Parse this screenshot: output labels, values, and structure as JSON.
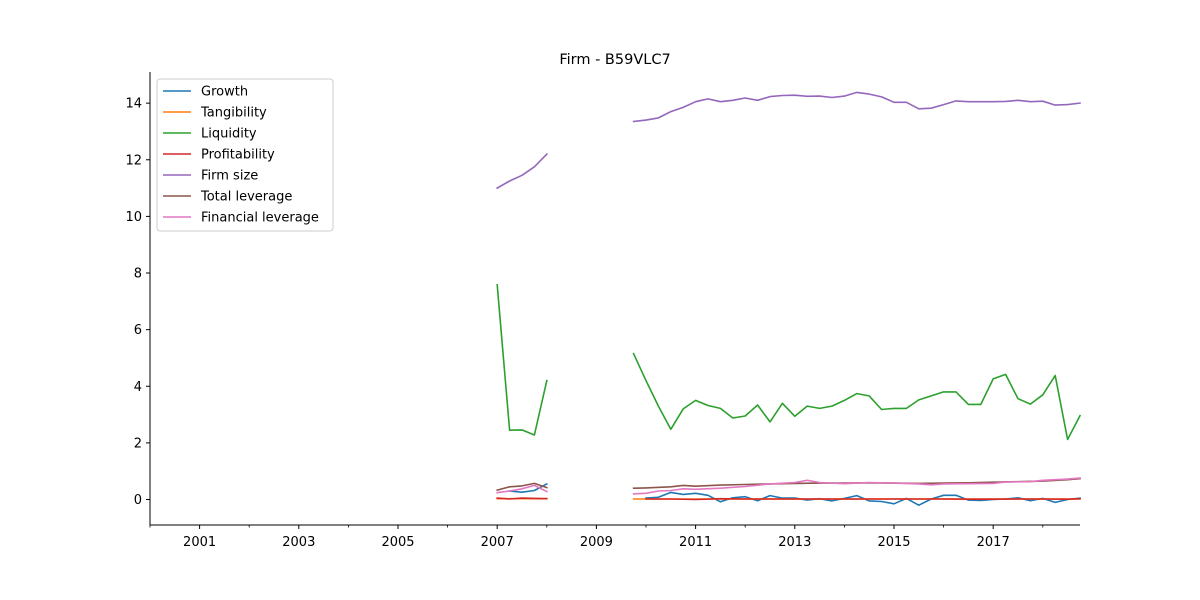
{
  "chart_data": {
    "type": "line",
    "title": "Firm - B59VLC7",
    "xlabel": "",
    "ylabel": "",
    "xlim": [
      2000.0,
      2018.75
    ],
    "ylim": [
      -0.9,
      15.1
    ],
    "x_ticks": [
      2001,
      2003,
      2005,
      2007,
      2009,
      2011,
      2013,
      2015,
      2017
    ],
    "x_minor_ticks": [
      2000,
      2002,
      2004,
      2006,
      2008,
      2010,
      2012,
      2014,
      2016,
      2018
    ],
    "y_ticks": [
      0,
      2,
      4,
      6,
      8,
      10,
      12,
      14
    ],
    "grid": false,
    "legend_position": "top-left",
    "series": [
      {
        "name": "Growth",
        "color": "#1f77b4",
        "segments": [
          [
            [
              2007.25,
              0.3
            ],
            [
              2007.5,
              0.26
            ],
            [
              2007.75,
              0.32
            ],
            [
              2008.0,
              0.55
            ]
          ],
          [
            [
              2010.0,
              0.05
            ],
            [
              2010.25,
              0.08
            ],
            [
              2010.5,
              0.25
            ],
            [
              2010.75,
              0.18
            ],
            [
              2011.0,
              0.22
            ],
            [
              2011.25,
              0.15
            ],
            [
              2011.5,
              -0.08
            ],
            [
              2011.75,
              0.06
            ],
            [
              2012.0,
              0.1
            ],
            [
              2012.25,
              -0.04
            ],
            [
              2012.5,
              0.14
            ],
            [
              2012.75,
              0.05
            ],
            [
              2013.0,
              0.05
            ],
            [
              2013.25,
              -0.02
            ],
            [
              2013.5,
              0.03
            ],
            [
              2013.75,
              -0.05
            ],
            [
              2014.0,
              0.04
            ],
            [
              2014.25,
              0.14
            ],
            [
              2014.5,
              -0.05
            ],
            [
              2014.75,
              -0.07
            ],
            [
              2015.0,
              -0.15
            ],
            [
              2015.25,
              0.04
            ],
            [
              2015.5,
              -0.2
            ],
            [
              2015.75,
              0.02
            ],
            [
              2016.0,
              0.15
            ],
            [
              2016.25,
              0.15
            ],
            [
              2016.5,
              -0.02
            ],
            [
              2016.75,
              -0.03
            ],
            [
              2017.0,
              0.0
            ],
            [
              2017.25,
              0.02
            ],
            [
              2017.5,
              0.06
            ],
            [
              2017.75,
              -0.04
            ],
            [
              2018.0,
              0.04
            ],
            [
              2018.25,
              -0.1
            ],
            [
              2018.5,
              0.0
            ],
            [
              2018.75,
              0.05
            ]
          ]
        ]
      },
      {
        "name": "Tangibility",
        "color": "#ff7f0e",
        "segments": [
          [
            [
              2007.0,
              0.03
            ],
            [
              2007.25,
              0.03
            ],
            [
              2007.5,
              0.03
            ],
            [
              2007.75,
              0.03
            ],
            [
              2008.0,
              0.03
            ]
          ],
          [
            [
              2009.75,
              0.02
            ],
            [
              2010.0,
              0.02
            ],
            [
              2010.5,
              0.02
            ],
            [
              2011.0,
              0.02
            ],
            [
              2011.5,
              0.02
            ],
            [
              2012.0,
              0.02
            ],
            [
              2012.5,
              0.02
            ],
            [
              2013.0,
              0.02
            ],
            [
              2013.5,
              0.02
            ],
            [
              2014.0,
              0.02
            ],
            [
              2014.5,
              0.02
            ],
            [
              2015.0,
              0.02
            ],
            [
              2015.5,
              0.02
            ],
            [
              2016.0,
              0.02
            ],
            [
              2016.5,
              0.02
            ],
            [
              2017.0,
              0.02
            ],
            [
              2017.5,
              0.02
            ],
            [
              2018.0,
              0.02
            ],
            [
              2018.5,
              0.02
            ],
            [
              2018.75,
              0.02
            ]
          ]
        ]
      },
      {
        "name": "Liquidity",
        "color": "#2ca02c",
        "segments": [
          [
            [
              2007.0,
              7.58
            ],
            [
              2007.25,
              2.45
            ],
            [
              2007.5,
              2.46
            ],
            [
              2007.75,
              2.28
            ],
            [
              2008.0,
              4.2
            ]
          ],
          [
            [
              2009.75,
              5.15
            ],
            [
              2010.0,
              4.2
            ],
            [
              2010.25,
              3.3
            ],
            [
              2010.5,
              2.48
            ],
            [
              2010.75,
              3.2
            ],
            [
              2011.0,
              3.5
            ],
            [
              2011.25,
              3.32
            ],
            [
              2011.5,
              3.22
            ],
            [
              2011.75,
              2.88
            ],
            [
              2012.0,
              2.95
            ],
            [
              2012.25,
              3.34
            ],
            [
              2012.5,
              2.74
            ],
            [
              2012.75,
              3.4
            ],
            [
              2013.0,
              2.94
            ],
            [
              2013.25,
              3.3
            ],
            [
              2013.5,
              3.22
            ],
            [
              2013.75,
              3.3
            ],
            [
              2014.0,
              3.5
            ],
            [
              2014.25,
              3.74
            ],
            [
              2014.5,
              3.66
            ],
            [
              2014.75,
              3.18
            ],
            [
              2015.0,
              3.22
            ],
            [
              2015.25,
              3.22
            ],
            [
              2015.5,
              3.52
            ],
            [
              2015.75,
              3.66
            ],
            [
              2016.0,
              3.8
            ],
            [
              2016.25,
              3.8
            ],
            [
              2016.5,
              3.36
            ],
            [
              2016.75,
              3.36
            ],
            [
              2017.0,
              4.26
            ],
            [
              2017.25,
              4.42
            ],
            [
              2017.5,
              3.56
            ],
            [
              2017.75,
              3.37
            ],
            [
              2018.0,
              3.7
            ],
            [
              2018.25,
              4.38
            ],
            [
              2018.5,
              2.12
            ],
            [
              2018.75,
              2.96
            ]
          ]
        ]
      },
      {
        "name": "Profitability",
        "color": "#d62728",
        "segments": [
          [
            [
              2007.0,
              0.05
            ],
            [
              2007.25,
              0.02
            ],
            [
              2007.5,
              0.05
            ],
            [
              2007.75,
              0.04
            ],
            [
              2008.0,
              0.03
            ]
          ],
          [
            [
              2010.0,
              0.02
            ],
            [
              2010.5,
              0.02
            ],
            [
              2011.0,
              0.0
            ],
            [
              2011.5,
              0.03
            ],
            [
              2012.0,
              0.02
            ],
            [
              2012.5,
              0.02
            ],
            [
              2013.0,
              0.02
            ],
            [
              2013.5,
              0.02
            ],
            [
              2014.0,
              0.02
            ],
            [
              2014.5,
              0.02
            ],
            [
              2015.0,
              0.02
            ],
            [
              2015.5,
              0.02
            ],
            [
              2016.0,
              0.02
            ],
            [
              2016.5,
              0.01
            ],
            [
              2017.0,
              0.01
            ],
            [
              2017.5,
              0.02
            ],
            [
              2018.0,
              0.02
            ],
            [
              2018.5,
              0.01
            ],
            [
              2018.75,
              0.03
            ]
          ]
        ]
      },
      {
        "name": "Firm size",
        "color": "#9467bd",
        "segments": [
          [
            [
              2007.0,
              11.0
            ],
            [
              2007.25,
              11.25
            ],
            [
              2007.5,
              11.45
            ],
            [
              2007.75,
              11.75
            ],
            [
              2008.0,
              12.2
            ]
          ],
          [
            [
              2009.75,
              13.35
            ],
            [
              2010.0,
              13.4
            ],
            [
              2010.25,
              13.48
            ],
            [
              2010.5,
              13.7
            ],
            [
              2010.75,
              13.85
            ],
            [
              2011.0,
              14.05
            ],
            [
              2011.25,
              14.15
            ],
            [
              2011.5,
              14.05
            ],
            [
              2011.75,
              14.1
            ],
            [
              2012.0,
              14.18
            ],
            [
              2012.25,
              14.1
            ],
            [
              2012.5,
              14.23
            ],
            [
              2012.75,
              14.27
            ],
            [
              2013.0,
              14.28
            ],
            [
              2013.25,
              14.24
            ],
            [
              2013.5,
              14.25
            ],
            [
              2013.75,
              14.2
            ],
            [
              2014.0,
              14.25
            ],
            [
              2014.25,
              14.38
            ],
            [
              2014.5,
              14.32
            ],
            [
              2014.75,
              14.22
            ],
            [
              2015.0,
              14.03
            ],
            [
              2015.25,
              14.03
            ],
            [
              2015.5,
              13.8
            ],
            [
              2015.75,
              13.82
            ],
            [
              2016.0,
              13.95
            ],
            [
              2016.25,
              14.08
            ],
            [
              2016.5,
              14.05
            ],
            [
              2016.75,
              14.05
            ],
            [
              2017.0,
              14.05
            ],
            [
              2017.25,
              14.06
            ],
            [
              2017.5,
              14.1
            ],
            [
              2017.75,
              14.05
            ],
            [
              2018.0,
              14.07
            ],
            [
              2018.25,
              13.93
            ],
            [
              2018.5,
              13.95
            ],
            [
              2018.75,
              14.0
            ]
          ]
        ]
      },
      {
        "name": "Total leverage",
        "color": "#8c564b",
        "segments": [
          [
            [
              2007.0,
              0.33
            ],
            [
              2007.25,
              0.45
            ],
            [
              2007.5,
              0.48
            ],
            [
              2007.75,
              0.57
            ],
            [
              2008.0,
              0.42
            ]
          ],
          [
            [
              2009.75,
              0.4
            ],
            [
              2010.0,
              0.41
            ],
            [
              2010.5,
              0.45
            ],
            [
              2010.75,
              0.5
            ],
            [
              2011.0,
              0.47
            ],
            [
              2011.5,
              0.51
            ],
            [
              2012.0,
              0.53
            ],
            [
              2012.5,
              0.55
            ],
            [
              2013.0,
              0.57
            ],
            [
              2013.5,
              0.58
            ],
            [
              2014.0,
              0.58
            ],
            [
              2014.5,
              0.59
            ],
            [
              2015.0,
              0.58
            ],
            [
              2015.5,
              0.57
            ],
            [
              2016.0,
              0.58
            ],
            [
              2016.5,
              0.59
            ],
            [
              2017.0,
              0.61
            ],
            [
              2017.5,
              0.63
            ],
            [
              2018.0,
              0.65
            ],
            [
              2018.5,
              0.7
            ],
            [
              2018.75,
              0.74
            ]
          ]
        ]
      },
      {
        "name": "Financial leverage",
        "color": "#e377c2",
        "segments": [
          [
            [
              2007.0,
              0.24
            ],
            [
              2007.25,
              0.3
            ],
            [
              2007.5,
              0.38
            ],
            [
              2007.75,
              0.5
            ],
            [
              2008.0,
              0.28
            ]
          ],
          [
            [
              2009.75,
              0.2
            ],
            [
              2010.0,
              0.22
            ],
            [
              2010.25,
              0.3
            ],
            [
              2010.5,
              0.32
            ],
            [
              2010.75,
              0.38
            ],
            [
              2011.0,
              0.36
            ],
            [
              2011.5,
              0.4
            ],
            [
              2012.0,
              0.46
            ],
            [
              2012.5,
              0.55
            ],
            [
              2013.0,
              0.6
            ],
            [
              2013.25,
              0.68
            ],
            [
              2013.5,
              0.6
            ],
            [
              2014.0,
              0.56
            ],
            [
              2014.5,
              0.6
            ],
            [
              2015.0,
              0.58
            ],
            [
              2015.5,
              0.55
            ],
            [
              2015.75,
              0.52
            ],
            [
              2016.0,
              0.55
            ],
            [
              2016.5,
              0.56
            ],
            [
              2017.0,
              0.57
            ],
            [
              2017.25,
              0.62
            ],
            [
              2017.75,
              0.63
            ],
            [
              2018.0,
              0.68
            ],
            [
              2018.5,
              0.72
            ],
            [
              2018.75,
              0.76
            ]
          ]
        ]
      }
    ]
  }
}
